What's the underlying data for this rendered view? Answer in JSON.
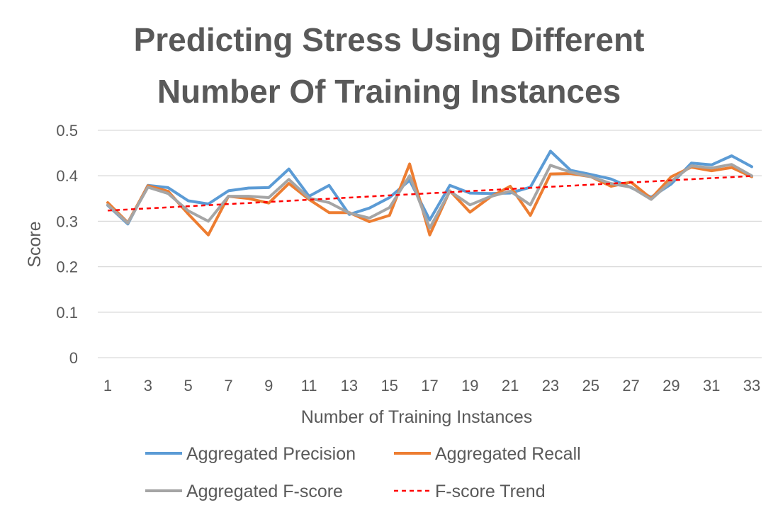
{
  "chart_data": {
    "type": "line",
    "title_lines": [
      "Predicting Stress Using Different",
      "Number Of Training Instances"
    ],
    "xlabel": "Number of Training Instances",
    "ylabel": "Score",
    "ylim": [
      0,
      0.5
    ],
    "y_ticks": [
      0,
      0.1,
      0.2,
      0.3,
      0.4,
      0.5
    ],
    "y_tick_labels": [
      "0",
      "0.1",
      "0.2",
      "0.3",
      "0.4",
      "0.5"
    ],
    "x": [
      1,
      2,
      3,
      4,
      5,
      6,
      7,
      8,
      9,
      10,
      11,
      12,
      13,
      14,
      15,
      16,
      17,
      18,
      19,
      20,
      21,
      22,
      23,
      24,
      25,
      26,
      27,
      28,
      29,
      30,
      31,
      32,
      33
    ],
    "x_tick_labels": [
      "1",
      "3",
      "5",
      "7",
      "9",
      "11",
      "13",
      "15",
      "17",
      "19",
      "21",
      "23",
      "25",
      "27",
      "29",
      "31",
      "33"
    ],
    "grid": true,
    "legend_position": "bottom",
    "series": [
      {
        "name": "Aggregated Precision",
        "color": "#5B9BD5",
        "style": "solid",
        "values": [
          0.335,
          0.294,
          0.379,
          0.374,
          0.345,
          0.338,
          0.367,
          0.373,
          0.374,
          0.415,
          0.355,
          0.379,
          0.315,
          0.329,
          0.352,
          0.39,
          0.303,
          0.379,
          0.362,
          0.361,
          0.362,
          0.375,
          0.454,
          0.412,
          0.403,
          0.393,
          0.374,
          0.353,
          0.382,
          0.428,
          0.424,
          0.444,
          0.42
        ]
      },
      {
        "name": "Aggregated Recall",
        "color": "#ED7D31",
        "style": "solid",
        "values": [
          0.341,
          0.297,
          0.378,
          0.366,
          0.316,
          0.27,
          0.355,
          0.35,
          0.34,
          0.383,
          0.348,
          0.319,
          0.319,
          0.299,
          0.313,
          0.426,
          0.27,
          0.367,
          0.32,
          0.353,
          0.377,
          0.313,
          0.404,
          0.405,
          0.398,
          0.377,
          0.386,
          0.35,
          0.398,
          0.419,
          0.411,
          0.418,
          0.398
        ]
      },
      {
        "name": "Aggregated F-score",
        "color": "#A5A5A5",
        "style": "solid",
        "values": [
          0.336,
          0.296,
          0.375,
          0.361,
          0.323,
          0.3,
          0.355,
          0.355,
          0.352,
          0.392,
          0.351,
          0.341,
          0.318,
          0.307,
          0.33,
          0.4,
          0.285,
          0.366,
          0.336,
          0.354,
          0.366,
          0.336,
          0.423,
          0.408,
          0.398,
          0.383,
          0.375,
          0.348,
          0.388,
          0.422,
          0.417,
          0.425,
          0.4
        ]
      },
      {
        "name": "F-score Trend",
        "color": "#FF0000",
        "style": "dashed",
        "values": [
          0.3235,
          0.3259,
          0.3283,
          0.3306,
          0.333,
          0.3354,
          0.3378,
          0.3401,
          0.3425,
          0.3449,
          0.3473,
          0.3496,
          0.352,
          0.3544,
          0.3568,
          0.3591,
          0.3615,
          0.3639,
          0.3663,
          0.3686,
          0.371,
          0.3734,
          0.3758,
          0.3781,
          0.3805,
          0.3829,
          0.3853,
          0.3876,
          0.39,
          0.3924,
          0.3948,
          0.3971,
          0.3995
        ]
      }
    ]
  }
}
